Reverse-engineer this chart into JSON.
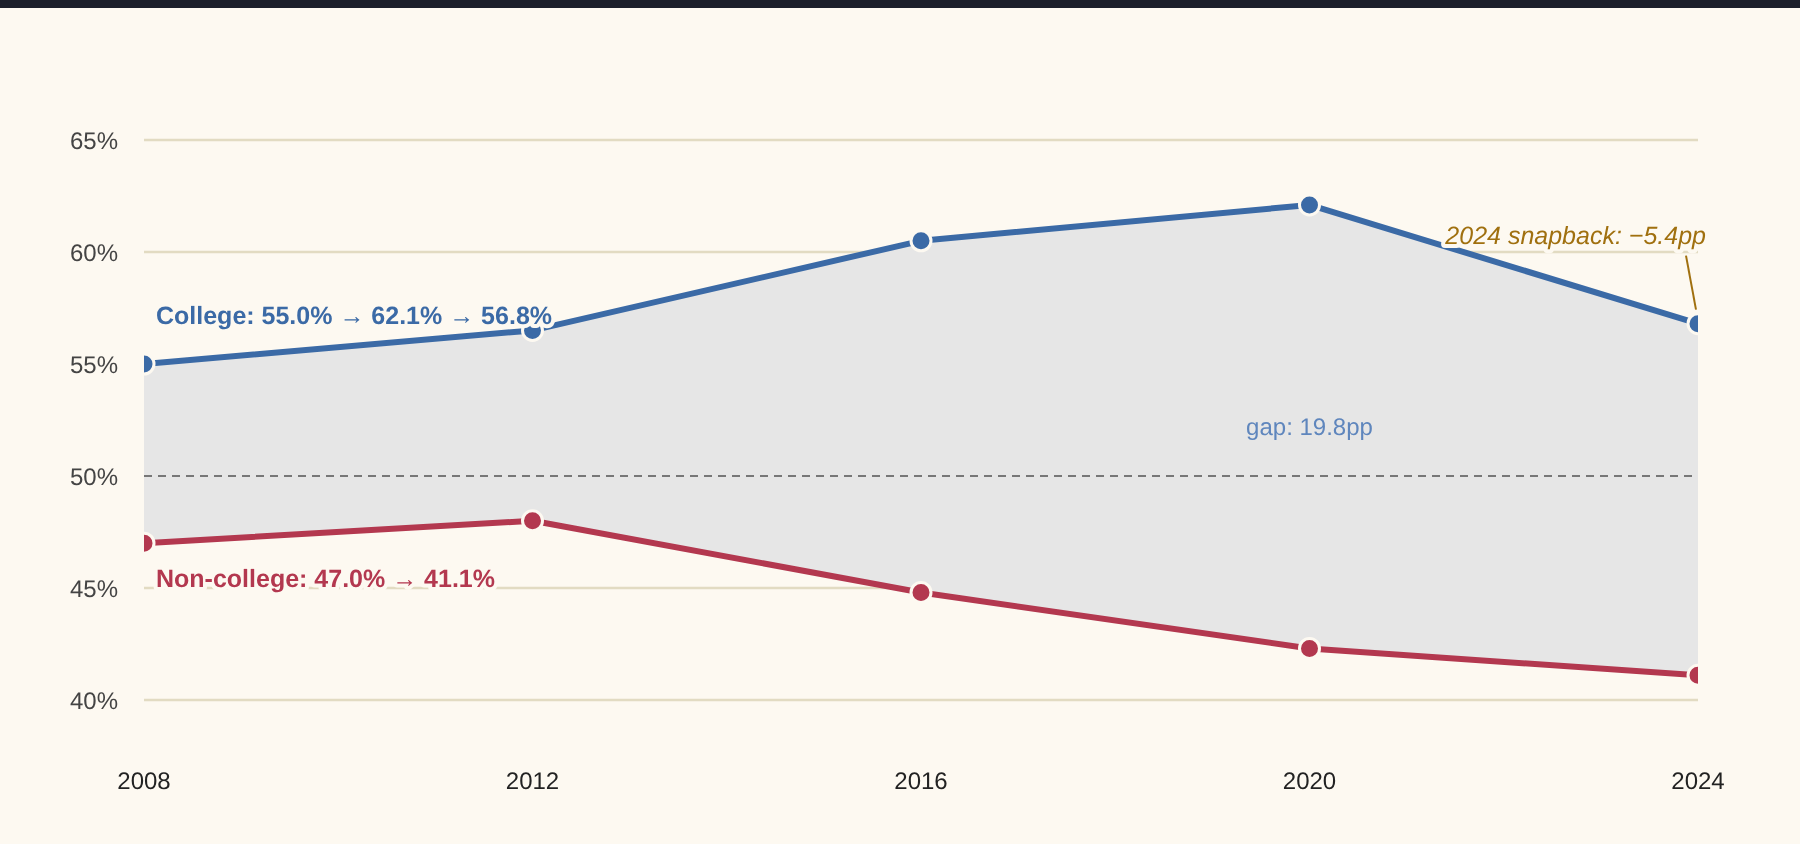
{
  "chart_data": {
    "type": "line",
    "x": [
      2008,
      2012,
      2016,
      2020,
      2024
    ],
    "series": [
      {
        "color": "#3b6aa6",
        "values": [
          55.0,
          56.5,
          60.5,
          62.1,
          56.8
        ],
        "lower": [
          47.0,
          48.0,
          44.8,
          42.3,
          41.1
        ],
        "upper": [
          55.0,
          56.5,
          60.5,
          62.1,
          56.8
        ]
      },
      {
        "color": "#b3384f",
        "values": [
          47.0,
          48.0,
          44.8,
          42.3,
          41.1
        ]
      }
    ],
    "xlim": [
      2008,
      2024
    ],
    "xticks": [
      2008,
      2012,
      2016,
      2020,
      2024
    ],
    "ylim": [
      40,
      65
    ],
    "yticks": [
      {
        "value": 40,
        "label": "40%"
      },
      {
        "value": 45,
        "label": "45%"
      },
      {
        "value": 50,
        "label": "50%"
      },
      {
        "value": 55,
        "label": "55%"
      },
      {
        "value": 60,
        "label": "60%"
      },
      {
        "value": 65,
        "label": "65%"
      }
    ],
    "grid": "y",
    "marker": "circle",
    "line_style": "solid",
    "ref_lines": [
      {
        "axis": "y",
        "value": 50,
        "color": "#777777",
        "line_style": "dashed"
      }
    ],
    "annotations": [
      "College: 55.0% → 62.1% → 56.8%",
      "Non-college: 47.0% → 41.1%",
      "gap: 19.8pp",
      {
        "text": "2024 snapback: −5.4pp",
        "x": 2024,
        "y": 56.8
      }
    ]
  }
}
